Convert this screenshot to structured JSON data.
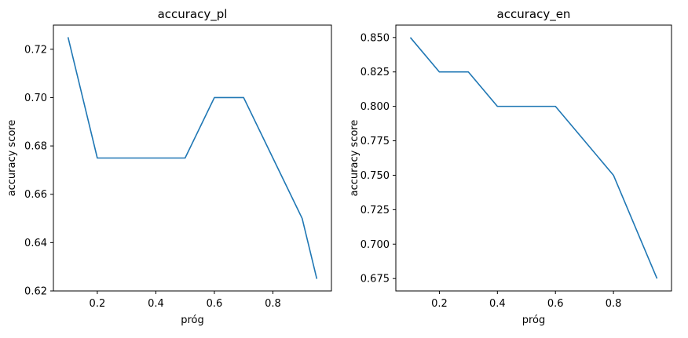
{
  "chart_data": [
    {
      "type": "line",
      "title": "accuracy_pl",
      "xlabel": "próg",
      "ylabel": "accuracy score",
      "xlim": [
        0.05,
        1.0
      ],
      "ylim": [
        0.62,
        0.73
      ],
      "xticks": [
        0.2,
        0.4,
        0.6,
        0.8
      ],
      "xtick_labels": [
        "0.2",
        "0.4",
        "0.6",
        "0.8"
      ],
      "yticks": [
        0.62,
        0.64,
        0.66,
        0.68,
        0.7,
        0.72
      ],
      "ytick_labels": [
        "0.62",
        "0.64",
        "0.66",
        "0.68",
        "0.70",
        "0.72"
      ],
      "grid": false,
      "color": "#1f77b4",
      "series": [
        {
          "x": [
            0.1,
            0.2,
            0.3,
            0.4,
            0.5,
            0.6,
            0.7,
            0.8,
            0.9,
            0.95
          ],
          "values": [
            0.725,
            0.675,
            0.675,
            0.675,
            0.675,
            0.7,
            0.7,
            0.675,
            0.65,
            0.625
          ]
        }
      ]
    },
    {
      "type": "line",
      "title": "accuracy_en",
      "xlabel": "próg",
      "ylabel": "accuracy score",
      "xlim": [
        0.05,
        1.0
      ],
      "ylim": [
        0.666,
        0.859
      ],
      "xticks": [
        0.2,
        0.4,
        0.6,
        0.8
      ],
      "xtick_labels": [
        "0.2",
        "0.4",
        "0.6",
        "0.8"
      ],
      "yticks": [
        0.675,
        0.7,
        0.725,
        0.75,
        0.775,
        0.8,
        0.825,
        0.85
      ],
      "ytick_labels": [
        "0.675",
        "0.700",
        "0.725",
        "0.750",
        "0.775",
        "0.800",
        "0.825",
        "0.850"
      ],
      "grid": false,
      "color": "#1f77b4",
      "series": [
        {
          "x": [
            0.1,
            0.2,
            0.3,
            0.4,
            0.5,
            0.6,
            0.7,
            0.8,
            0.9,
            0.95
          ],
          "values": [
            0.85,
            0.825,
            0.825,
            0.8,
            0.8,
            0.8,
            0.775,
            0.75,
            0.7,
            0.675
          ]
        }
      ]
    }
  ]
}
